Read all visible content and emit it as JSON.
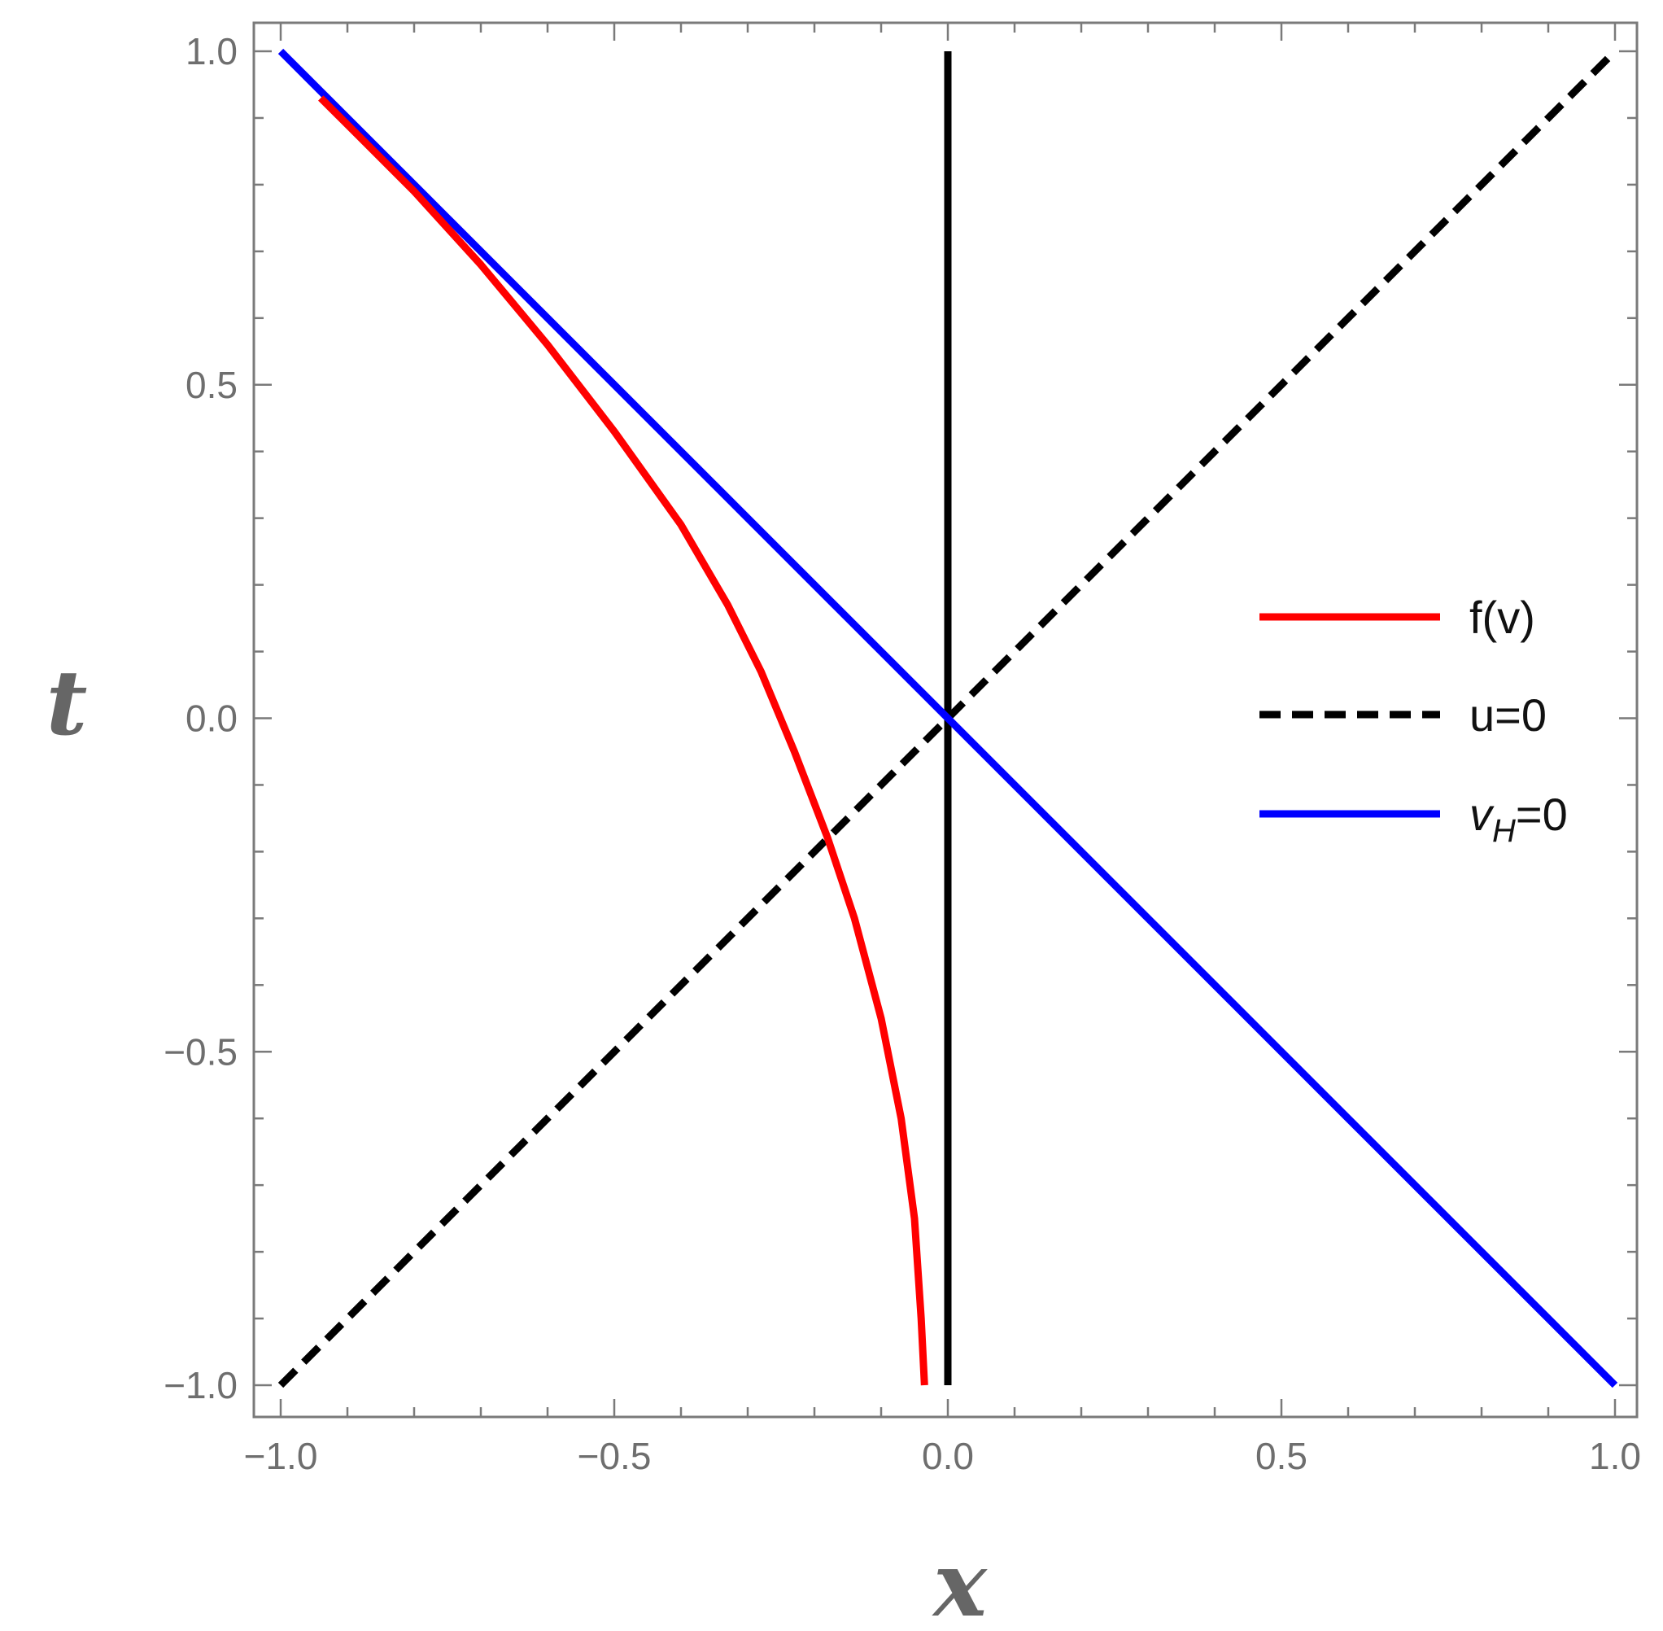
{
  "chart_data": {
    "type": "line",
    "title": "",
    "xlabel": "x",
    "ylabel": "t",
    "xlim": [
      -1.0,
      1.0
    ],
    "ylim": [
      -1.0,
      1.0
    ],
    "xticks": [
      -1.0,
      -0.5,
      0.0,
      0.5,
      1.0
    ],
    "yticks": [
      -1.0,
      -0.5,
      0.0,
      0.5,
      1.0
    ],
    "xtick_labels": [
      "−1.0",
      "−0.5",
      "0.0",
      "0.5",
      "1.0"
    ],
    "ytick_labels": [
      "−1.0",
      "−0.5",
      "0.0",
      "0.5",
      "1.0"
    ],
    "grid": false,
    "legend_position": "right",
    "series": [
      {
        "name": "f(v)",
        "color": "#ff0000",
        "style": "solid",
        "x": [
          -0.035,
          -0.04,
          -0.05,
          -0.07,
          -0.1,
          -0.14,
          -0.18,
          -0.23,
          -0.28,
          -0.33,
          -0.4,
          -0.5,
          -0.6,
          -0.7,
          -0.8,
          -0.88,
          -0.94
        ],
        "y": [
          -1.0,
          -0.9,
          -0.75,
          -0.6,
          -0.45,
          -0.3,
          -0.18,
          -0.05,
          0.07,
          0.17,
          0.29,
          0.43,
          0.56,
          0.68,
          0.79,
          0.87,
          0.93
        ]
      },
      {
        "name": "u=0",
        "color": "#000000",
        "style": "dashed",
        "x": [
          -1.0,
          1.0
        ],
        "y": [
          -1.0,
          1.0
        ]
      },
      {
        "name": "v",
        "name_subscript": "H",
        "name_suffix": "=0",
        "color": "#0000ff",
        "style": "solid",
        "x": [
          -1.0,
          1.0
        ],
        "y": [
          1.0,
          -1.0
        ]
      },
      {
        "name": "",
        "color": "#000000",
        "style": "solid",
        "x": [
          0.0,
          0.0
        ],
        "y": [
          -1.0,
          1.0
        ]
      }
    ]
  }
}
